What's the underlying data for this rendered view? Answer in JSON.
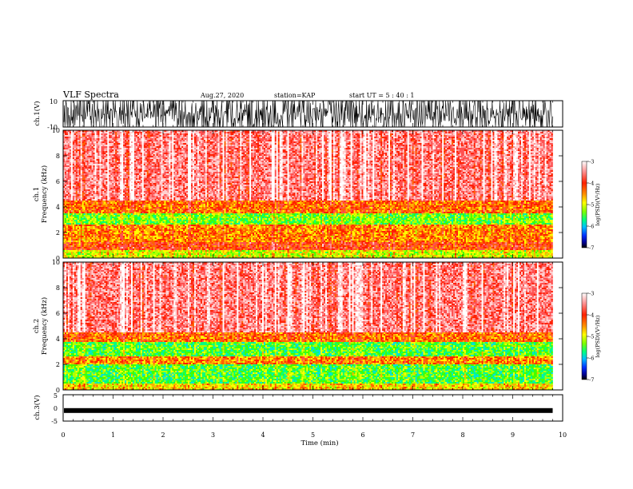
{
  "header": {
    "title": "VLF Spectra",
    "date": "Aug.27, 2020",
    "station": "station=KAP",
    "start": "start UT =  5 : 40 : 1"
  },
  "colors": {
    "scale": [
      "#000000",
      "#0000b0",
      "#0030ff",
      "#00a0ff",
      "#00e0e0",
      "#00ff80",
      "#40ff00",
      "#b0ff00",
      "#ffff00",
      "#ffb000",
      "#ff6000",
      "#ff2000",
      "#ff5050",
      "#ff9090",
      "#ffd0d0",
      "#ffffff"
    ],
    "trace": "#000000"
  },
  "chart_data": [
    {
      "type": "line",
      "name": "ch1-waveform",
      "ylabel": "ch.1(V)",
      "ylim": [
        -10,
        10
      ],
      "yticks": [
        "10",
        "-10"
      ],
      "xlim": [
        0,
        10
      ],
      "description_values": "noisy waveform saturating between -10 and 10 V over 0-9.8 min"
    },
    {
      "type": "heatmap",
      "name": "ch1-spectrogram",
      "ylabel": "ch.1\nFrequency (kHz)",
      "ylabel_lines": [
        "ch.1",
        "Frequency (kHz)"
      ],
      "ylim": [
        0,
        10
      ],
      "yticks": [
        "0",
        "2",
        "4",
        "6",
        "8",
        "10"
      ],
      "xlim": [
        0,
        10
      ],
      "data_end_min": 9.8,
      "colorbar": {
        "label": "log(PSD)(V²/Hz)",
        "range": [
          -7,
          -3
        ],
        "ticks": [
          "-3",
          "-4",
          "-5",
          "-6",
          "-7"
        ]
      },
      "bands": [
        {
          "from_khz": 0.0,
          "to_khz": 0.6,
          "level": -5.0
        },
        {
          "from_khz": 0.6,
          "to_khz": 1.3,
          "level": -4.2
        },
        {
          "from_khz": 1.3,
          "to_khz": 2.6,
          "level": -4.5
        },
        {
          "from_khz": 2.6,
          "to_khz": 3.5,
          "level": -5.3
        },
        {
          "from_khz": 3.5,
          "to_khz": 4.5,
          "level": -4.4
        },
        {
          "from_khz": 4.5,
          "to_khz": 10.0,
          "level": -3.7
        }
      ]
    },
    {
      "type": "heatmap",
      "name": "ch2-spectrogram",
      "ylabel": "ch.2\nFrequency (kHz)",
      "ylabel_lines": [
        "ch.2",
        "Frequency (kHz)"
      ],
      "ylim": [
        0,
        10
      ],
      "yticks": [
        "0",
        "2",
        "4",
        "6",
        "8",
        "10"
      ],
      "xlim": [
        0,
        10
      ],
      "data_end_min": 9.8,
      "colorbar": {
        "label": "log(PSD)(V²/Hz)",
        "range": [
          -7,
          -3
        ],
        "ticks": [
          "-3",
          "-4",
          "-5",
          "-6",
          "-7"
        ]
      },
      "bands": [
        {
          "from_khz": 0.0,
          "to_khz": 0.5,
          "level": -4.8
        },
        {
          "from_khz": 0.5,
          "to_khz": 2.0,
          "level": -5.4
        },
        {
          "from_khz": 2.0,
          "to_khz": 2.6,
          "level": -4.5
        },
        {
          "from_khz": 2.6,
          "to_khz": 3.7,
          "level": -5.4
        },
        {
          "from_khz": 3.7,
          "to_khz": 4.5,
          "level": -4.4
        },
        {
          "from_khz": 4.5,
          "to_khz": 10.0,
          "level": -3.7
        }
      ]
    },
    {
      "type": "line",
      "name": "ch3-waveform",
      "ylabel": "ch.3(V)",
      "ylim": [
        -5,
        5
      ],
      "yticks": [
        "5",
        "0",
        "-5"
      ],
      "xlim": [
        0,
        10
      ],
      "level_v": -1.0
    }
  ],
  "xaxis": {
    "label": "Time (min)",
    "ticks": [
      "0",
      "1",
      "2",
      "3",
      "4",
      "5",
      "6",
      "7",
      "8",
      "9",
      "10"
    ]
  }
}
